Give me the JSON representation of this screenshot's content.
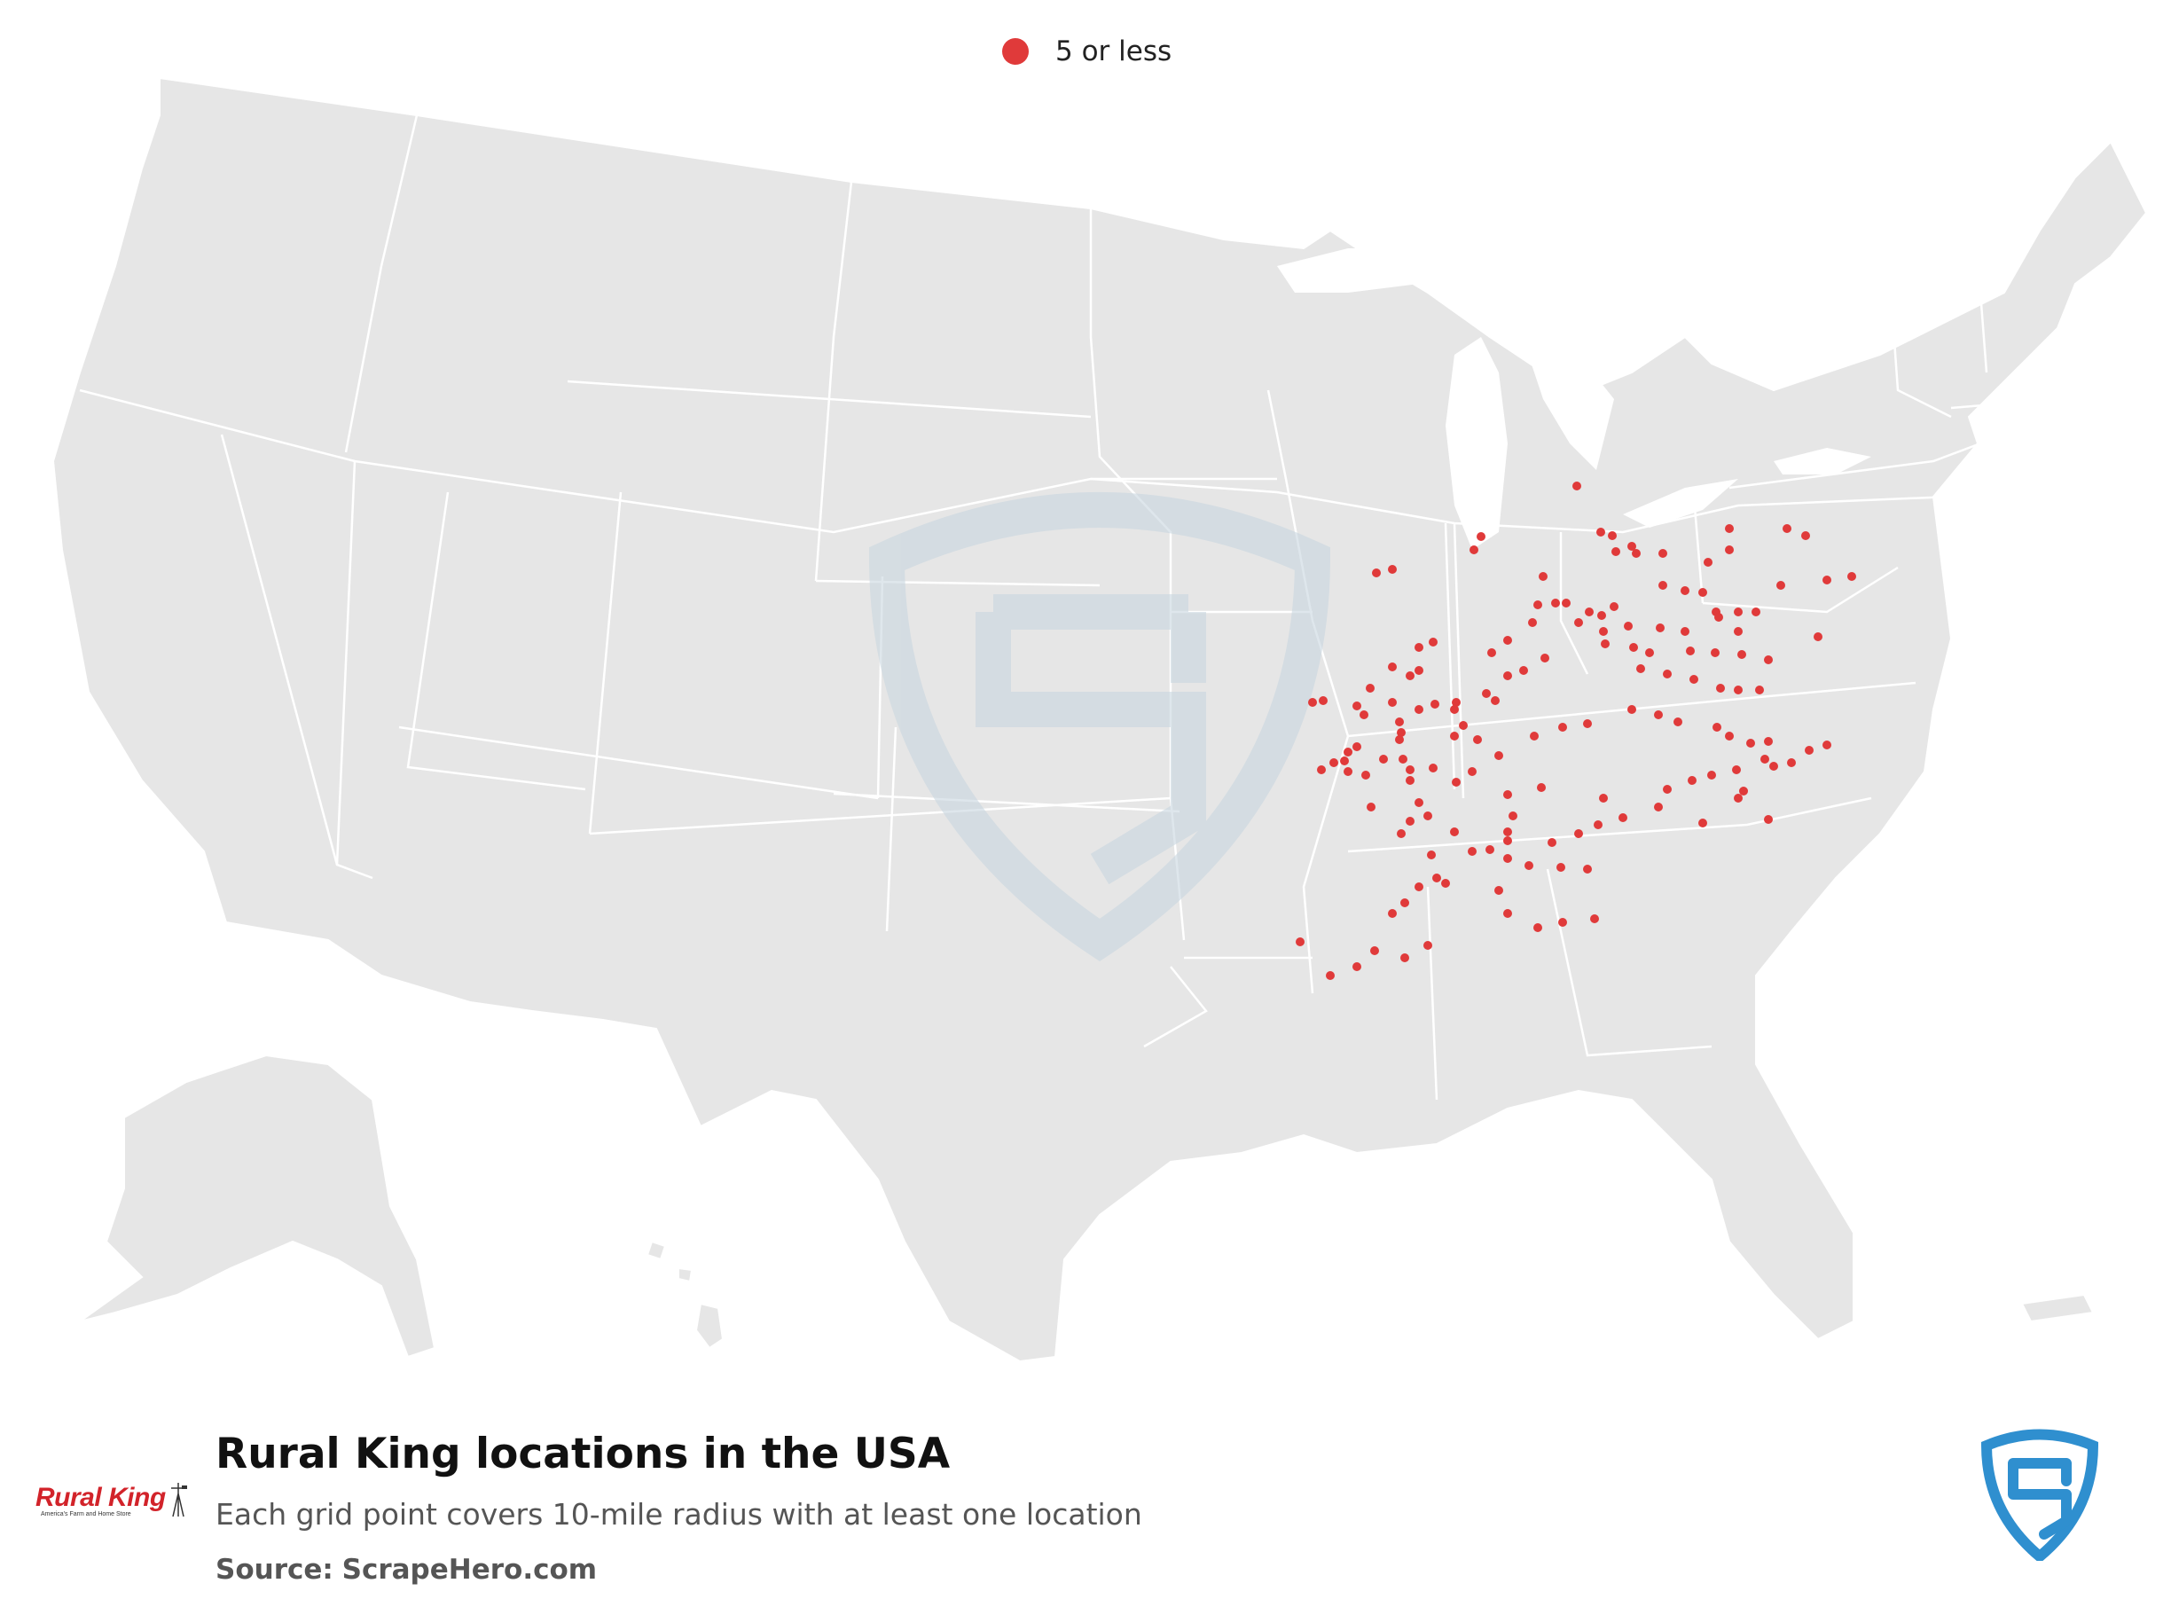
{
  "legend": {
    "label": "5 or less",
    "color": "#e03a3a"
  },
  "map": {
    "land_color": "#e6e6e6",
    "border_color": "#ffffff",
    "watermark_color": "#c9d7e0",
    "marker_color": "#e03a3a"
  },
  "footer": {
    "title": "Rural King locations in the USA",
    "subtitle": "Each grid point covers 10-mile radius with at least one location",
    "source_label": "Source:",
    "source_value": "ScrapeHero.com",
    "logo_brand": "Rural King",
    "logo_tagline": "America's Farm and Home Store",
    "badge_color": "#2f8fcf"
  },
  "icons": [
    "windmill-icon",
    "scrapehero-shield-icon",
    "watermark-shield-icon"
  ]
}
